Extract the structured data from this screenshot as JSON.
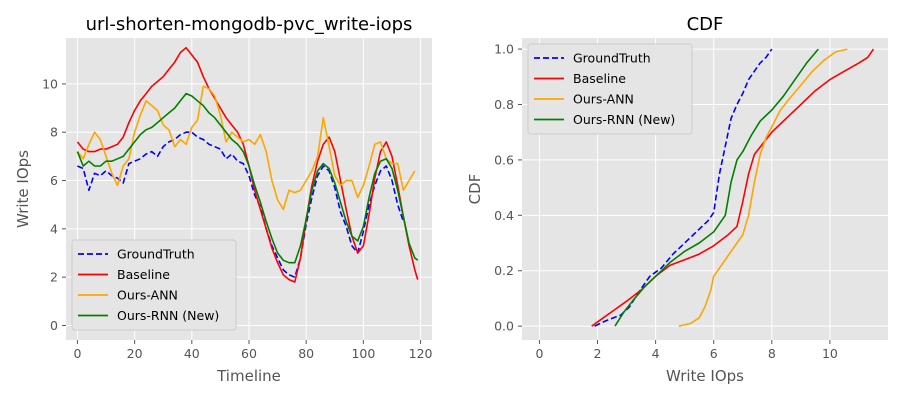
{
  "charts": [
    {
      "type": "line",
      "title": "url-shorten-mongodb-pvc_write-iops",
      "xlabel": "Timeline",
      "ylabel": "Write IOps",
      "xlim": [
        -4,
        124
      ],
      "ylim": [
        -0.6,
        11.9
      ],
      "xticks": [
        0,
        20,
        40,
        60,
        80,
        100,
        120
      ],
      "yticks": [
        0,
        2,
        4,
        6,
        8,
        10
      ],
      "grid": true,
      "legend_position": "lower-left"
    },
    {
      "type": "line",
      "title": "CDF",
      "xlabel": "Write IOps",
      "ylabel": "CDF",
      "xlim": [
        -0.6,
        12.0
      ],
      "ylim": [
        -0.05,
        1.04
      ],
      "xticks": [
        0,
        2,
        4,
        6,
        8,
        10
      ],
      "yticks": [
        0.0,
        0.2,
        0.4,
        0.6,
        0.8,
        1.0
      ],
      "grid": true,
      "legend_position": "upper-left"
    }
  ],
  "series_style": [
    {
      "name": "GroundTruth",
      "color": "#0000ff",
      "dash": "dashed"
    },
    {
      "name": "Baseline",
      "color": "#ff0000",
      "dash": "solid"
    },
    {
      "name": "Ours-ANN",
      "color": "#ffa500",
      "dash": "solid"
    },
    {
      "name": "Ours-RNN (New)",
      "color": "#008000",
      "dash": "solid"
    }
  ],
  "chart_data": [
    {
      "type": "line",
      "title": "url-shorten-mongodb-pvc_write-iops",
      "xlabel": "Timeline",
      "ylabel": "Write IOps",
      "xlim": [
        -4,
        124
      ],
      "ylim": [
        -0.6,
        11.9
      ],
      "grid": true,
      "legend": "lower-left",
      "series": [
        {
          "name": "GroundTruth",
          "x": [
            0,
            2,
            4,
            6,
            8,
            10,
            12,
            14,
            16,
            18,
            20,
            22,
            24,
            26,
            28,
            30,
            32,
            34,
            36,
            38,
            40,
            42,
            44,
            46,
            48,
            50,
            52,
            54,
            56,
            58,
            60,
            62,
            64,
            66,
            68,
            70,
            72,
            74,
            76,
            78,
            80,
            82,
            84,
            86,
            88,
            90,
            92,
            94,
            96,
            98,
            100,
            102,
            104,
            106,
            108,
            110,
            112,
            114,
            116,
            118
          ],
          "y": [
            6.6,
            6.5,
            5.6,
            6.3,
            6.2,
            6.4,
            6.2,
            6.1,
            5.9,
            6.7,
            6.8,
            6.9,
            7.1,
            7.2,
            7.0,
            7.4,
            7.6,
            7.7,
            7.9,
            8.0,
            8.0,
            7.8,
            7.7,
            7.5,
            7.4,
            7.3,
            6.9,
            7.1,
            6.8,
            6.7,
            6.2,
            5.4,
            4.9,
            4.0,
            3.3,
            2.8,
            2.3,
            2.1,
            2.0,
            2.8,
            4.2,
            5.3,
            6.2,
            6.6,
            6.4,
            5.7,
            4.7,
            4.1,
            3.3,
            3.0,
            3.9,
            5.0,
            5.8,
            6.4,
            6.6,
            6.0,
            5.0,
            4.3,
            null,
            null
          ]
        },
        {
          "name": "Baseline",
          "x": [
            0,
            2,
            4,
            6,
            8,
            10,
            12,
            14,
            16,
            18,
            20,
            22,
            24,
            26,
            28,
            30,
            32,
            34,
            36,
            38,
            40,
            42,
            44,
            46,
            48,
            50,
            52,
            54,
            56,
            58,
            60,
            62,
            64,
            66,
            68,
            70,
            72,
            74,
            76,
            78,
            80,
            82,
            84,
            86,
            88,
            90,
            92,
            94,
            96,
            98,
            100,
            102,
            104,
            106,
            108,
            110,
            112,
            114,
            116,
            118,
            119
          ],
          "y": [
            7.6,
            7.3,
            7.2,
            7.2,
            7.3,
            7.3,
            7.4,
            7.5,
            7.8,
            8.4,
            8.9,
            9.3,
            9.6,
            9.9,
            10.1,
            10.3,
            10.6,
            10.9,
            11.3,
            11.5,
            11.2,
            10.9,
            10.3,
            9.8,
            9.4,
            9.0,
            8.6,
            8.3,
            8.0,
            7.5,
            6.6,
            5.6,
            4.8,
            4.0,
            3.2,
            2.6,
            2.1,
            1.9,
            1.8,
            2.8,
            4.4,
            5.8,
            6.8,
            7.5,
            7.8,
            7.2,
            6.0,
            4.8,
            3.7,
            3.0,
            3.3,
            4.6,
            6.1,
            7.2,
            7.6,
            7.0,
            5.8,
            4.5,
            3.3,
            2.3,
            1.9
          ]
        },
        {
          "name": "Ours-ANN",
          "x": [
            0,
            2,
            4,
            6,
            8,
            10,
            12,
            14,
            16,
            18,
            20,
            22,
            24,
            26,
            28,
            30,
            32,
            34,
            36,
            38,
            40,
            42,
            44,
            46,
            48,
            50,
            52,
            54,
            56,
            58,
            60,
            62,
            64,
            66,
            68,
            70,
            72,
            74,
            76,
            78,
            80,
            82,
            84,
            86,
            88,
            90,
            92,
            94,
            96,
            98,
            100,
            102,
            104,
            106,
            108,
            110,
            112,
            114,
            116,
            118
          ],
          "y": [
            7.2,
            6.9,
            7.5,
            8.0,
            7.7,
            7.0,
            6.3,
            5.8,
            6.6,
            6.9,
            8.0,
            8.7,
            9.3,
            9.1,
            8.9,
            8.3,
            8.1,
            7.4,
            7.7,
            7.5,
            8.2,
            8.5,
            9.9,
            9.8,
            9.5,
            8.7,
            7.6,
            8.0,
            7.8,
            7.6,
            7.7,
            7.5,
            7.9,
            7.2,
            6.0,
            5.2,
            4.8,
            5.6,
            5.5,
            5.6,
            6.0,
            6.4,
            7.0,
            8.6,
            7.4,
            6.2,
            5.8,
            6.0,
            6.0,
            5.3,
            5.8,
            6.6,
            7.5,
            7.6,
            6.9,
            6.7,
            6.7,
            5.6,
            6.0,
            6.4
          ]
        },
        {
          "name": "Ours-RNN (New)",
          "x": [
            0,
            2,
            4,
            6,
            8,
            10,
            12,
            14,
            16,
            18,
            20,
            22,
            24,
            26,
            28,
            30,
            32,
            34,
            36,
            38,
            40,
            42,
            44,
            46,
            48,
            50,
            52,
            54,
            56,
            58,
            60,
            62,
            64,
            66,
            68,
            70,
            72,
            74,
            76,
            78,
            80,
            82,
            84,
            86,
            88,
            90,
            92,
            94,
            96,
            98,
            100,
            102,
            104,
            106,
            108,
            110,
            112,
            114,
            116,
            118,
            119
          ],
          "y": [
            7.2,
            6.6,
            6.8,
            6.6,
            6.6,
            6.8,
            6.8,
            6.9,
            7.0,
            7.3,
            7.6,
            7.9,
            8.1,
            8.2,
            8.4,
            8.6,
            8.8,
            9.0,
            9.3,
            9.6,
            9.5,
            9.3,
            9.1,
            8.8,
            8.6,
            8.3,
            8.0,
            7.7,
            7.5,
            7.2,
            6.6,
            5.8,
            5.1,
            4.3,
            3.6,
            3.0,
            2.7,
            2.6,
            2.6,
            3.3,
            4.4,
            5.6,
            6.4,
            6.7,
            6.5,
            5.9,
            5.1,
            4.3,
            3.7,
            3.5,
            4.1,
            5.3,
            6.3,
            6.8,
            6.9,
            6.5,
            5.6,
            4.5,
            3.4,
            2.8,
            2.7
          ]
        }
      ]
    },
    {
      "type": "line",
      "title": "CDF",
      "xlabel": "Write IOps",
      "ylabel": "CDF",
      "xlim": [
        -0.6,
        12.0
      ],
      "ylim": [
        -0.05,
        1.04
      ],
      "grid": true,
      "legend": "upper-left",
      "series": [
        {
          "name": "GroundTruth",
          "x": [
            1.9,
            2.3,
            2.8,
            3.1,
            3.4,
            3.8,
            4.2,
            4.6,
            5.0,
            5.4,
            5.8,
            6.0,
            6.1,
            6.2,
            6.3,
            6.4,
            6.5,
            6.6,
            6.8,
            7.0,
            7.2,
            7.4,
            7.6,
            7.8,
            8.0
          ],
          "y": [
            0.0,
            0.02,
            0.04,
            0.07,
            0.12,
            0.18,
            0.21,
            0.26,
            0.3,
            0.34,
            0.38,
            0.41,
            0.48,
            0.55,
            0.6,
            0.65,
            0.7,
            0.75,
            0.8,
            0.84,
            0.89,
            0.92,
            0.95,
            0.97,
            1.0
          ]
        },
        {
          "name": "Baseline",
          "x": [
            1.8,
            2.2,
            2.6,
            3.0,
            3.5,
            4.0,
            4.5,
            5.0,
            5.5,
            6.0,
            6.5,
            6.8,
            7.0,
            7.2,
            7.4,
            7.7,
            8.0,
            8.5,
            9.0,
            9.5,
            10.0,
            10.5,
            11.0,
            11.3,
            11.5
          ],
          "y": [
            0.0,
            0.03,
            0.06,
            0.09,
            0.13,
            0.18,
            0.22,
            0.24,
            0.26,
            0.29,
            0.33,
            0.36,
            0.45,
            0.55,
            0.62,
            0.66,
            0.7,
            0.75,
            0.8,
            0.85,
            0.89,
            0.92,
            0.95,
            0.97,
            1.0
          ]
        },
        {
          "name": "Ours-ANN",
          "x": [
            4.8,
            5.2,
            5.5,
            5.7,
            5.9,
            6.0,
            6.2,
            6.4,
            6.6,
            6.8,
            7.0,
            7.2,
            7.4,
            7.6,
            7.8,
            8.0,
            8.3,
            8.6,
            9.0,
            9.4,
            9.8,
            10.2,
            10.6
          ],
          "y": [
            0.0,
            0.01,
            0.03,
            0.07,
            0.13,
            0.18,
            0.21,
            0.24,
            0.27,
            0.3,
            0.33,
            0.4,
            0.52,
            0.62,
            0.68,
            0.72,
            0.78,
            0.82,
            0.87,
            0.92,
            0.96,
            0.99,
            1.0
          ]
        },
        {
          "name": "Ours-RNN (New)",
          "x": [
            2.6,
            2.9,
            3.2,
            3.6,
            4.0,
            4.5,
            5.0,
            5.5,
            6.0,
            6.4,
            6.6,
            6.8,
            7.0,
            7.3,
            7.6,
            8.0,
            8.4,
            8.8,
            9.2,
            9.6
          ],
          "y": [
            0.0,
            0.05,
            0.09,
            0.14,
            0.18,
            0.23,
            0.27,
            0.3,
            0.34,
            0.4,
            0.52,
            0.6,
            0.63,
            0.69,
            0.74,
            0.78,
            0.83,
            0.89,
            0.95,
            1.0
          ]
        }
      ]
    }
  ]
}
